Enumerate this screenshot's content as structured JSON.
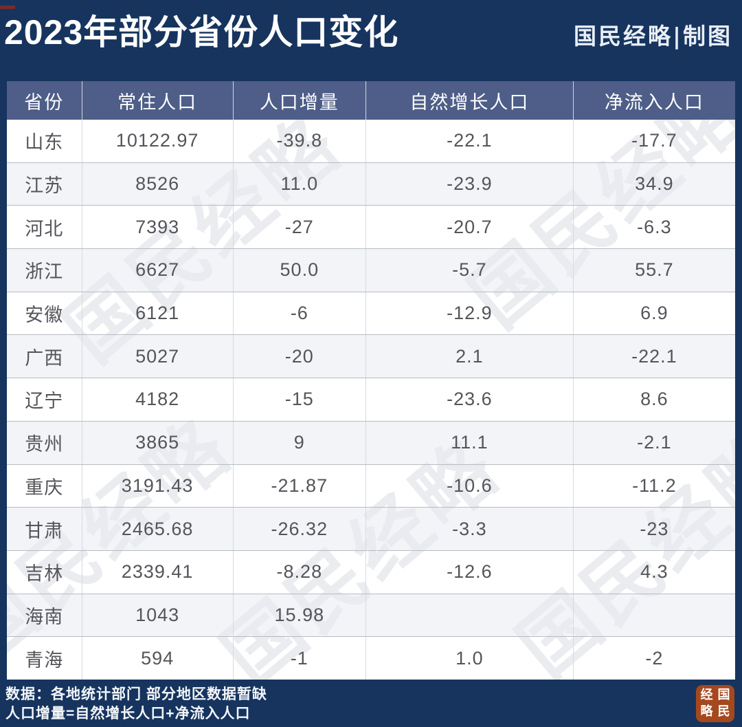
{
  "header": {
    "title": "2023年部分省份人口变化",
    "credit": "国民经略|制图"
  },
  "chart_data": {
    "type": "table",
    "title": "2023年部分省份人口变化",
    "columns": [
      "省份",
      "常住人口",
      "人口增量",
      "自然增长人口",
      "净流入人口"
    ],
    "rows": [
      [
        "山东",
        "10122.97",
        "-39.8",
        "-22.1",
        "-17.7"
      ],
      [
        "江苏",
        "8526",
        "11.0",
        "-23.9",
        "34.9"
      ],
      [
        "河北",
        "7393",
        "-27",
        "-20.7",
        "-6.3"
      ],
      [
        "浙江",
        "6627",
        "50.0",
        "-5.7",
        "55.7"
      ],
      [
        "安徽",
        "6121",
        "-6",
        "-12.9",
        "6.9"
      ],
      [
        "广西",
        "5027",
        "-20",
        "2.1",
        "-22.1"
      ],
      [
        "辽宁",
        "4182",
        "-15",
        "-23.6",
        "8.6"
      ],
      [
        "贵州",
        "3865",
        "9",
        "11.1",
        "-2.1"
      ],
      [
        "重庆",
        "3191.43",
        "-21.87",
        "-10.6",
        "-11.2"
      ],
      [
        "甘肃",
        "2465.68",
        "-26.32",
        "-3.3",
        "-23"
      ],
      [
        "吉林",
        "2339.41",
        "-8.28",
        "-12.6",
        "4.3"
      ],
      [
        "海南",
        "1043",
        "15.98",
        "",
        ""
      ],
      [
        "青海",
        "594",
        "-1",
        "1.0",
        "-2"
      ]
    ]
  },
  "footer": {
    "line1": "数据：各地统计部门 部分地区数据暂缺",
    "line2": "人口增量=自然增长人口+净流入人口"
  },
  "watermark": {
    "text": "国民经略"
  },
  "seal": {
    "text": "国民经略",
    "display": [
      "经",
      "国",
      "略",
      "民"
    ]
  },
  "colors": {
    "background_navy": "#16345e",
    "table_header": "#4e5e88",
    "row_alt": "#eff1f4",
    "cell_text": "#54555a",
    "seal_red": "#a6481d",
    "corner_mark_red": "#8c2c20"
  }
}
